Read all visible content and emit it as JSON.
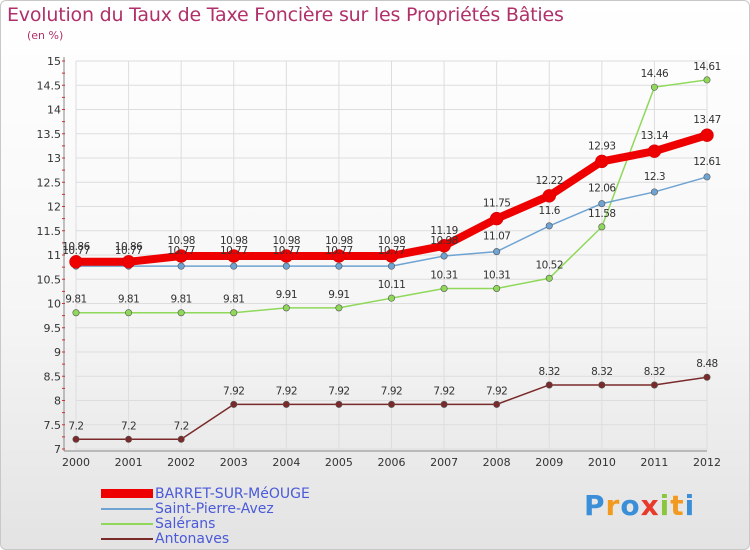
{
  "title": "Evolution du Taux de Taxe Foncière sur les Propriétés Bâties",
  "unit_label": "(en %)",
  "logo_text": "Proxiti",
  "chart_data": {
    "type": "line",
    "title": "Evolution du Taux de Taxe Foncière sur les Propriétés Bâties",
    "ylabel": "(en %)",
    "xlabel": "",
    "ylim": [
      7,
      15
    ],
    "yticks": [
      "7",
      "7.5",
      "8",
      "8.5",
      "9",
      "9.5",
      "10",
      "10.5",
      "11",
      "11.5",
      "12",
      "12.5",
      "13",
      "13.5",
      "14",
      "14.5",
      "15"
    ],
    "categories": [
      "2000",
      "2001",
      "2002",
      "2003",
      "2004",
      "2005",
      "2006",
      "2007",
      "2008",
      "2009",
      "2010",
      "2011",
      "2012"
    ],
    "series": [
      {
        "name": "Antonaves",
        "color": "#7a2a2a",
        "values": [
          7.2,
          7.2,
          7.2,
          7.92,
          7.92,
          7.92,
          7.92,
          7.92,
          7.92,
          8.32,
          8.32,
          8.32,
          8.48
        ],
        "labels": [
          "7.2",
          "7.2",
          "7.2",
          "7.92",
          "7.92",
          "7.92",
          "7.92",
          "7.92",
          "7.92",
          "8.32",
          "8.32",
          "8.32",
          "8.48"
        ]
      },
      {
        "name": "Salérans",
        "color": "#8fd85a",
        "values": [
          9.81,
          9.81,
          9.81,
          9.81,
          9.91,
          9.91,
          10.11,
          10.31,
          10.31,
          10.52,
          11.58,
          14.46,
          14.61
        ],
        "labels": [
          "9.81",
          "9.81",
          "9.81",
          "9.81",
          "9.91",
          "9.91",
          "10.11",
          "10.31",
          "10.31",
          "10.52",
          "11.58",
          "14.46",
          "14.61"
        ]
      },
      {
        "name": "Saint-Pierre-Avez",
        "color": "#6fa3d2",
        "values": [
          10.77,
          10.77,
          10.77,
          10.77,
          10.77,
          10.77,
          10.77,
          10.98,
          11.07,
          11.6,
          12.06,
          12.3,
          12.61
        ],
        "labels": [
          "10.77",
          "10.77",
          "10.77",
          "10.77",
          "10.77",
          "10.77",
          "10.77",
          "10.98",
          "11.07",
          "11.6",
          "12.06",
          "12.3",
          "12.61"
        ]
      },
      {
        "name": "BARRET-SUR-MéOUGE",
        "color": "#ee0000",
        "values": [
          10.86,
          10.86,
          10.98,
          10.98,
          10.98,
          10.98,
          10.98,
          11.19,
          11.75,
          12.22,
          12.93,
          13.14,
          13.47
        ],
        "labels": [
          "10.86",
          "10.86",
          "10.98",
          "10.98",
          "10.98",
          "10.98",
          "10.98",
          "11.19",
          "11.75",
          "12.22",
          "12.93",
          "13.14",
          "13.47"
        ]
      }
    ],
    "legend": [
      "BARRET-SUR-MéOUGE",
      "Saint-Pierre-Avez",
      "Salérans",
      "Antonaves"
    ]
  }
}
